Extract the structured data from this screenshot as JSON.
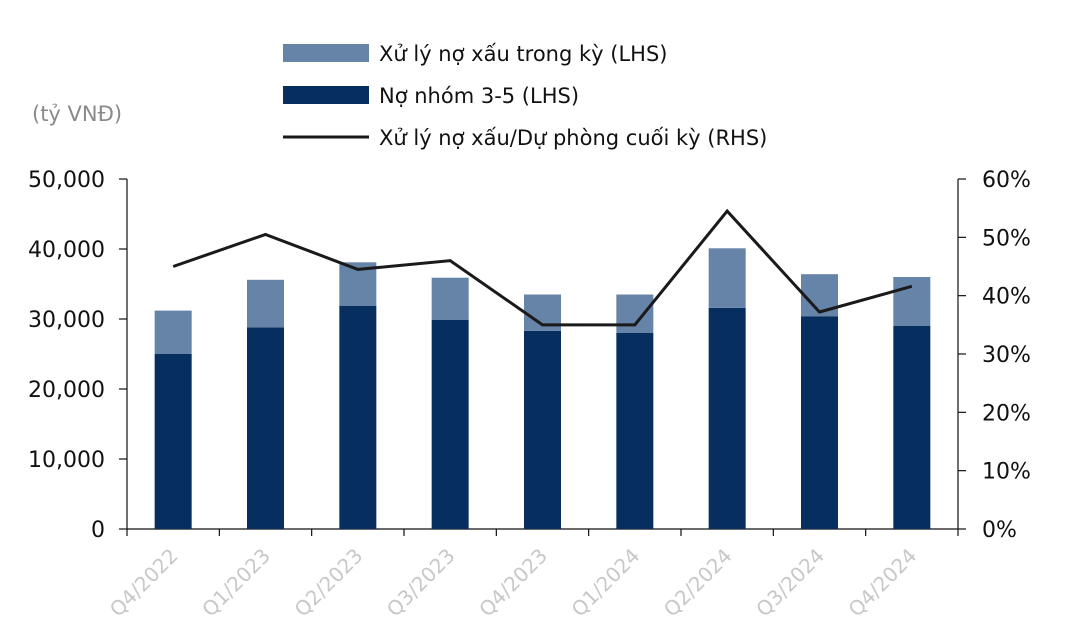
{
  "unit_label": "(tỷ VNĐ)",
  "legend": [
    {
      "label": "Xử lý nợ xấu trong kỳ (LHS)",
      "swatch": "bar",
      "color": "#6683a8"
    },
    {
      "label": "Nợ nhóm 3-5 (LHS)",
      "swatch": "bar",
      "color": "#062e5e"
    },
    {
      "label": "Xử lý nợ xấu/Dự phòng cuối kỳ (RHS)",
      "swatch": "line",
      "color": "#1a1a1a"
    }
  ],
  "chart_data": {
    "type": "bar",
    "stacked": true,
    "categories": [
      "Q4/2022",
      "Q1/2023",
      "Q2/2023",
      "Q3/2023",
      "Q4/2023",
      "Q1/2024",
      "Q2/2024",
      "Q3/2024",
      "Q4/2024"
    ],
    "series": [
      {
        "name": "Nợ nhóm 3-5 (LHS)",
        "axis": "left",
        "type": "bar",
        "color": "#062e5e",
        "values": [
          25000,
          28800,
          31900,
          29900,
          28300,
          28000,
          31600,
          30400,
          29000
        ]
      },
      {
        "name": "Xử lý nợ xấu trong kỳ (LHS)",
        "axis": "left",
        "type": "bar",
        "color": "#6683a8",
        "values": [
          6200,
          6800,
          6200,
          6000,
          5200,
          5500,
          8500,
          6000,
          7000
        ]
      },
      {
        "name": "Xử lý nợ xấu/Dự phòng cuối kỳ (RHS)",
        "axis": "right",
        "type": "line",
        "color": "#1a1a1a",
        "values": [
          0.45,
          0.505,
          0.445,
          0.46,
          0.35,
          0.35,
          0.545,
          0.372,
          0.416
        ]
      }
    ],
    "y_left": {
      "min": 0,
      "max": 50000,
      "ticks": [
        "0",
        "10,000",
        "20,000",
        "30,000",
        "40,000",
        "50,000"
      ]
    },
    "y_right": {
      "min": 0,
      "max": 0.6,
      "ticks": [
        "0%",
        "10%",
        "20%",
        "30%",
        "40%",
        "50%",
        "60%"
      ]
    },
    "grid": false,
    "legend_position": "top-center"
  }
}
